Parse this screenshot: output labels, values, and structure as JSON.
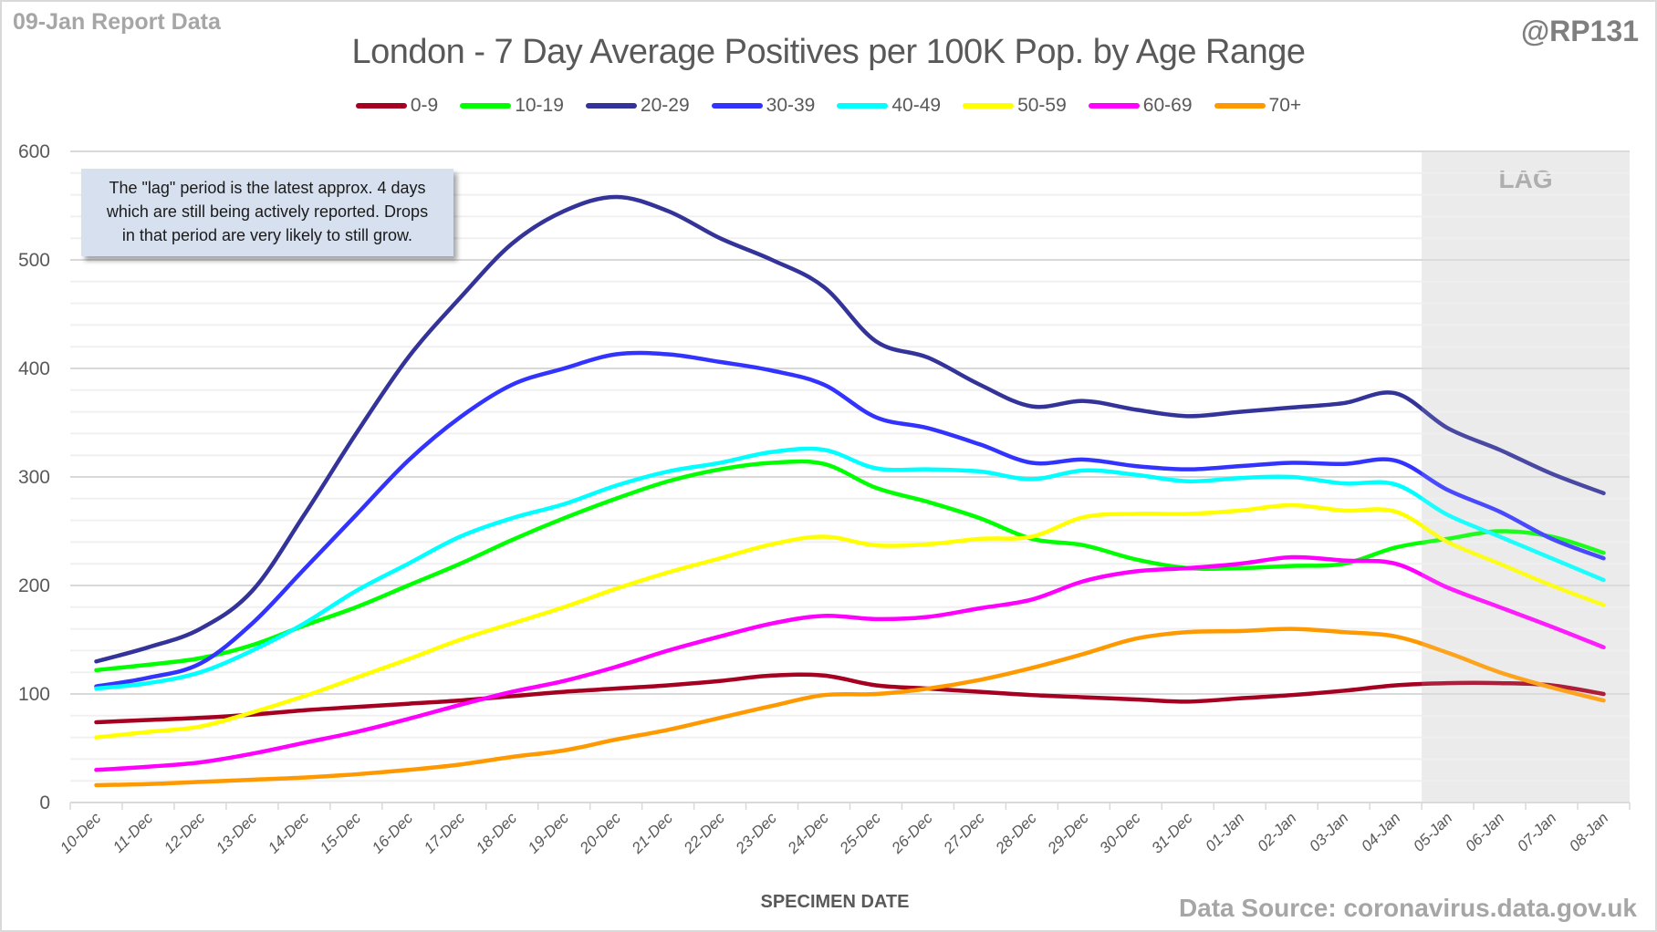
{
  "header": {
    "report_label": "09-Jan Report Data",
    "handle": "@RP131",
    "source": "Data Source: coronavirus.data.gov.uk"
  },
  "note": {
    "line1": "The \"lag\" period is the latest approx. 4 days",
    "line2": "which are still being actively reported.  Drops",
    "line3": "in that period are very likely to still grow."
  },
  "chart_data": {
    "type": "line",
    "title": "London - 7 Day Average Positives per 100K Pop. by Age Range",
    "xlabel": "SPECIMEN DATE",
    "ylabel": "",
    "ylim": [
      0,
      600
    ],
    "yticks": [
      0,
      100,
      200,
      300,
      400,
      500,
      600
    ],
    "grid": true,
    "legend_position": "top-center",
    "lag_region": {
      "label": "LAG",
      "from": "05-Jan",
      "to": "08-Jan"
    },
    "x": [
      "10-Dec",
      "11-Dec",
      "12-Dec",
      "13-Dec",
      "14-Dec",
      "15-Dec",
      "16-Dec",
      "17-Dec",
      "18-Dec",
      "19-Dec",
      "20-Dec",
      "21-Dec",
      "22-Dec",
      "23-Dec",
      "24-Dec",
      "25-Dec",
      "26-Dec",
      "27-Dec",
      "28-Dec",
      "29-Dec",
      "30-Dec",
      "31-Dec",
      "01-Jan",
      "02-Jan",
      "03-Jan",
      "04-Jan",
      "05-Jan",
      "06-Jan",
      "07-Jan",
      "08-Jan"
    ],
    "series": [
      {
        "name": "0-9",
        "color": "#a50021",
        "values": [
          74,
          76,
          78,
          81,
          85,
          88,
          91,
          94,
          98,
          102,
          105,
          108,
          112,
          117,
          117,
          108,
          105,
          102,
          99,
          97,
          95,
          93,
          96,
          99,
          103,
          108,
          110,
          110,
          108,
          100
        ]
      },
      {
        "name": "10-19",
        "color": "#00ff00",
        "values": [
          122,
          127,
          133,
          145,
          163,
          180,
          200,
          220,
          242,
          262,
          280,
          296,
          307,
          313,
          312,
          290,
          277,
          262,
          243,
          237,
          224,
          216,
          216,
          218,
          220,
          235,
          243,
          250,
          245,
          230
        ]
      },
      {
        "name": "20-29",
        "color": "#333399",
        "values": [
          130,
          143,
          160,
          195,
          265,
          340,
          410,
          465,
          515,
          545,
          558,
          545,
          520,
          500,
          475,
          425,
          410,
          385,
          365,
          370,
          362,
          356,
          360,
          364,
          368,
          377,
          345,
          325,
          303,
          285
        ]
      },
      {
        "name": "30-39",
        "color": "#3333ff",
        "values": [
          107,
          115,
          128,
          165,
          215,
          265,
          315,
          355,
          385,
          400,
          413,
          413,
          406,
          398,
          385,
          355,
          345,
          330,
          313,
          316,
          310,
          307,
          310,
          313,
          312,
          315,
          288,
          268,
          243,
          225
        ]
      },
      {
        "name": "40-49",
        "color": "#00ffff",
        "values": [
          105,
          110,
          120,
          140,
          165,
          195,
          220,
          245,
          262,
          275,
          292,
          305,
          313,
          323,
          325,
          308,
          307,
          305,
          298,
          306,
          302,
          296,
          299,
          300,
          294,
          293,
          265,
          245,
          225,
          205
        ]
      },
      {
        "name": "50-59",
        "color": "#ffff00",
        "values": [
          60,
          65,
          70,
          83,
          98,
          115,
          132,
          150,
          165,
          180,
          197,
          212,
          225,
          238,
          245,
          237,
          238,
          243,
          245,
          263,
          266,
          266,
          269,
          274,
          269,
          268,
          240,
          220,
          200,
          182
        ]
      },
      {
        "name": "60-69",
        "color": "#ff00ff",
        "values": [
          30,
          33,
          37,
          45,
          55,
          65,
          77,
          90,
          102,
          112,
          125,
          140,
          153,
          165,
          172,
          169,
          171,
          179,
          187,
          204,
          213,
          216,
          220,
          226,
          223,
          220,
          198,
          180,
          162,
          143
        ]
      },
      {
        "name": "70+",
        "color": "#ff9900",
        "values": [
          16,
          17,
          19,
          21,
          23,
          26,
          30,
          35,
          42,
          48,
          58,
          67,
          78,
          89,
          99,
          100,
          105,
          113,
          124,
          137,
          151,
          157,
          158,
          160,
          157,
          153,
          138,
          120,
          106,
          94
        ]
      }
    ]
  }
}
